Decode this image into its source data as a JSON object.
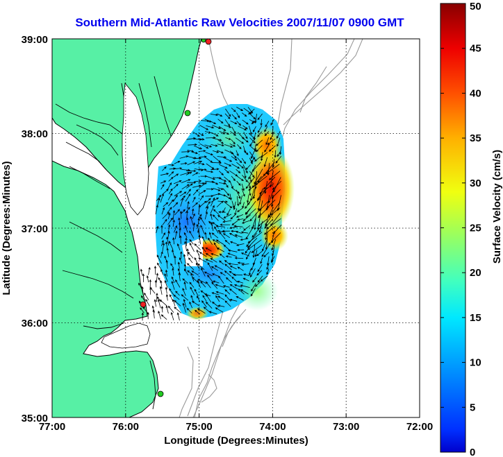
{
  "title": "Southern Mid-Atlantic Raw Velocities 2007/11/07 0900 GMT",
  "xlabel": "Longitude (Degrees:Minutes)",
  "ylabel": "Latitude (Degrees:Minutes)",
  "colorbar": {
    "label": "Surface Velocity (cm/s)",
    "ticks": [
      "0",
      "5",
      "10",
      "15",
      "20",
      "25",
      "30",
      "35",
      "40",
      "45",
      "50"
    ],
    "min": 0,
    "max": 50,
    "colormap": "jet"
  },
  "map": {
    "xticks": [
      "77:00",
      "76:00",
      "75:00",
      "74:00",
      "73:00",
      "72:00"
    ],
    "yticks": [
      "39:00",
      "38:00",
      "37:00",
      "36:00",
      "35:00"
    ],
    "lon_range": [
      -77,
      -72
    ],
    "lat_range": [
      35,
      39
    ],
    "grid": "dotted",
    "land_color": "#57f0a5",
    "coast_color": "#000000",
    "bathymetry_color": "#999999",
    "station_color": "#22cc22",
    "station_alert_color": "#ee2222"
  }
}
